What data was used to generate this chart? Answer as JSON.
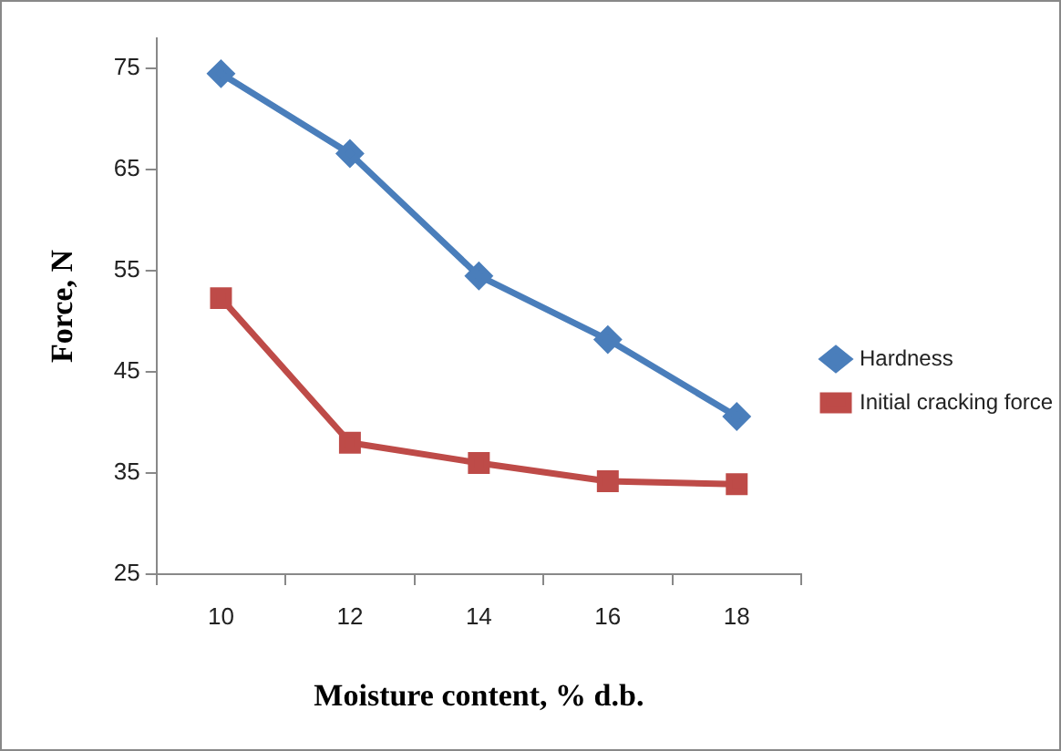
{
  "chart_data": {
    "type": "line",
    "xlabel": "Moisture content, % d.b.",
    "ylabel": "Force, N",
    "categories": [
      "10",
      "12",
      "14",
      "16",
      "18"
    ],
    "series": [
      {
        "name": "Hardness",
        "color": "#4a7ebb",
        "marker": "diamond",
        "values": [
          74.5,
          66.6,
          54.5,
          48.2,
          40.6
        ]
      },
      {
        "name": "Initial cracking force",
        "color": "#be4b48",
        "marker": "square",
        "values": [
          52.3,
          38.0,
          36.0,
          34.2,
          33.9
        ]
      }
    ],
    "ylim": [
      25,
      78
    ],
    "yticks": [
      25,
      35,
      45,
      55,
      65,
      75
    ],
    "grid": false,
    "legend": "right"
  }
}
